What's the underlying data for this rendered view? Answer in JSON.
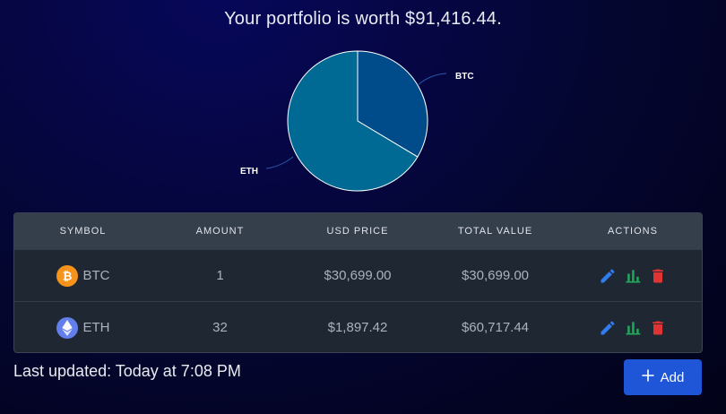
{
  "header": {
    "title": "Your portfolio is worth $91,416.44."
  },
  "chart_data": {
    "type": "pie",
    "labels": [
      "BTC",
      "ETH"
    ],
    "values": [
      30699.0,
      60717.44
    ],
    "colors": [
      "#004b8a",
      "#006a94"
    ]
  },
  "table": {
    "headers": [
      "SYMBOL",
      "AMOUNT",
      "USD PRICE",
      "TOTAL VALUE",
      "ACTIONS"
    ],
    "rows": [
      {
        "symbol": "BTC",
        "amount": "1",
        "usd_price": "$30,699.00",
        "total_value": "$30,699.00",
        "icon": "bitcoin-icon",
        "icon_color": "#f7931a"
      },
      {
        "symbol": "ETH",
        "amount": "32",
        "usd_price": "$1,897.42",
        "total_value": "$60,717.44",
        "icon": "ethereum-icon",
        "icon_color": "#627eea"
      }
    ]
  },
  "footer": {
    "last_updated": "Last updated: Today at 7:08 PM"
  },
  "add_button": {
    "label": "Add"
  },
  "colors": {
    "edit": "#2f7df0",
    "chart": "#22a85a",
    "delete": "#e03333",
    "accent": "#1f56d8"
  }
}
